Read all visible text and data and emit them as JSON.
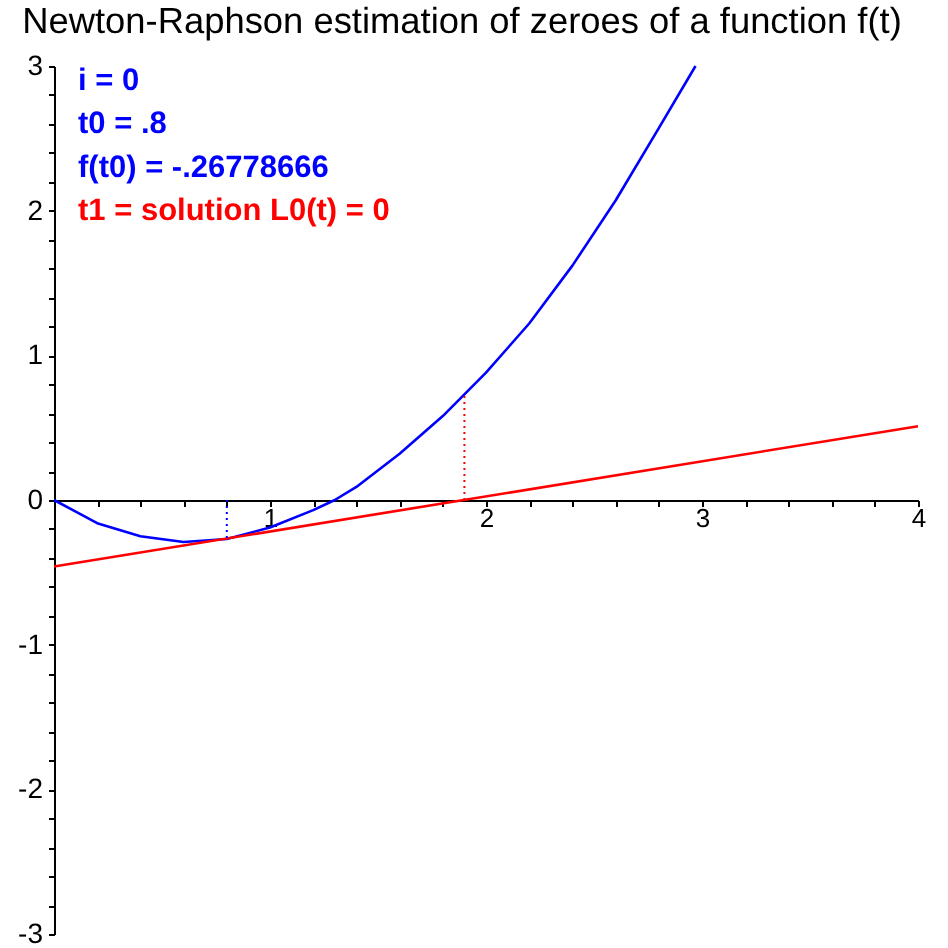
{
  "chart_data": {
    "type": "line",
    "title": "Newton-Raphson estimation of zeroes of a function f(t)",
    "annotations": [
      "i = 0",
      "t0 = .8",
      "f(t0) = -.26778666",
      "t1 = solution L0(t) = 0"
    ],
    "series": [
      {
        "color": "#0000ff",
        "x": [
          0,
          0.2,
          0.4,
          0.6,
          0.8,
          1.0,
          1.2,
          1.3,
          1.4,
          1.6,
          1.8,
          2.0,
          2.2,
          2.4,
          2.6,
          2.8,
          2.97
        ],
        "values": [
          0,
          -0.16,
          -0.25,
          -0.29,
          -0.27,
          -0.19,
          -0.07,
          0.0,
          0.09,
          0.32,
          0.58,
          0.88,
          1.22,
          1.62,
          2.07,
          2.57,
          3.0
        ]
      },
      {
        "color": "#ff0000",
        "x": [
          0,
          4
        ],
        "values": [
          -0.46,
          0.51
        ]
      },
      {
        "color": "#0000ff",
        "x": [
          0.8,
          0.8
        ],
        "values": [
          0,
          -0.27
        ],
        "line_style": "dotted"
      },
      {
        "color": "#ff0000",
        "x": [
          1.9,
          1.9
        ],
        "values": [
          0,
          0.72
        ],
        "line_style": "dotted"
      }
    ],
    "xlim": [
      0,
      4
    ],
    "ylim": [
      -3,
      3
    ],
    "xticks": [
      {
        "value": 0.2,
        "label": null
      },
      {
        "value": 0.4,
        "label": null
      },
      {
        "value": 0.6,
        "label": null
      },
      {
        "value": 0.8,
        "label": null
      },
      1,
      {
        "value": 1.2,
        "label": null
      },
      {
        "value": 1.4,
        "label": null
      },
      {
        "value": 1.6,
        "label": null
      },
      {
        "value": 1.8,
        "label": null
      },
      2,
      {
        "value": 2.2,
        "label": null
      },
      {
        "value": 2.4,
        "label": null
      },
      {
        "value": 2.6,
        "label": null
      },
      {
        "value": 2.8,
        "label": null
      },
      3,
      {
        "value": 3.2,
        "label": null
      },
      {
        "value": 3.4,
        "label": null
      },
      {
        "value": 3.6,
        "label": null
      },
      {
        "value": 3.8,
        "label": null
      },
      4
    ],
    "yticks": [
      -3,
      {
        "value": -2.8,
        "label": null
      },
      {
        "value": -2.6,
        "label": null
      },
      {
        "value": -2.4,
        "label": null
      },
      {
        "value": -2.2,
        "label": null
      },
      -2,
      {
        "value": -1.8,
        "label": null
      },
      {
        "value": -1.6,
        "label": null
      },
      {
        "value": -1.4,
        "label": null
      },
      {
        "value": -1.2,
        "label": null
      },
      -1,
      {
        "value": -0.8,
        "label": null
      },
      {
        "value": -0.6,
        "label": null
      },
      {
        "value": -0.4,
        "label": null
      },
      {
        "value": -0.2,
        "label": null
      },
      0,
      {
        "value": 0.2,
        "label": null
      },
      {
        "value": 0.4,
        "label": null
      },
      {
        "value": 0.6,
        "label": null
      },
      {
        "value": 0.8,
        "label": null
      },
      1,
      {
        "value": 1.2,
        "label": null
      },
      {
        "value": 1.4,
        "label": null
      },
      {
        "value": 1.6,
        "label": null
      },
      {
        "value": 1.8,
        "label": null
      },
      2,
      {
        "value": 2.2,
        "label": null
      },
      {
        "value": 2.4,
        "label": null
      },
      {
        "value": 2.6,
        "label": null
      },
      {
        "value": 2.8,
        "label": null
      },
      3
    ],
    "line_style": "solid"
  }
}
